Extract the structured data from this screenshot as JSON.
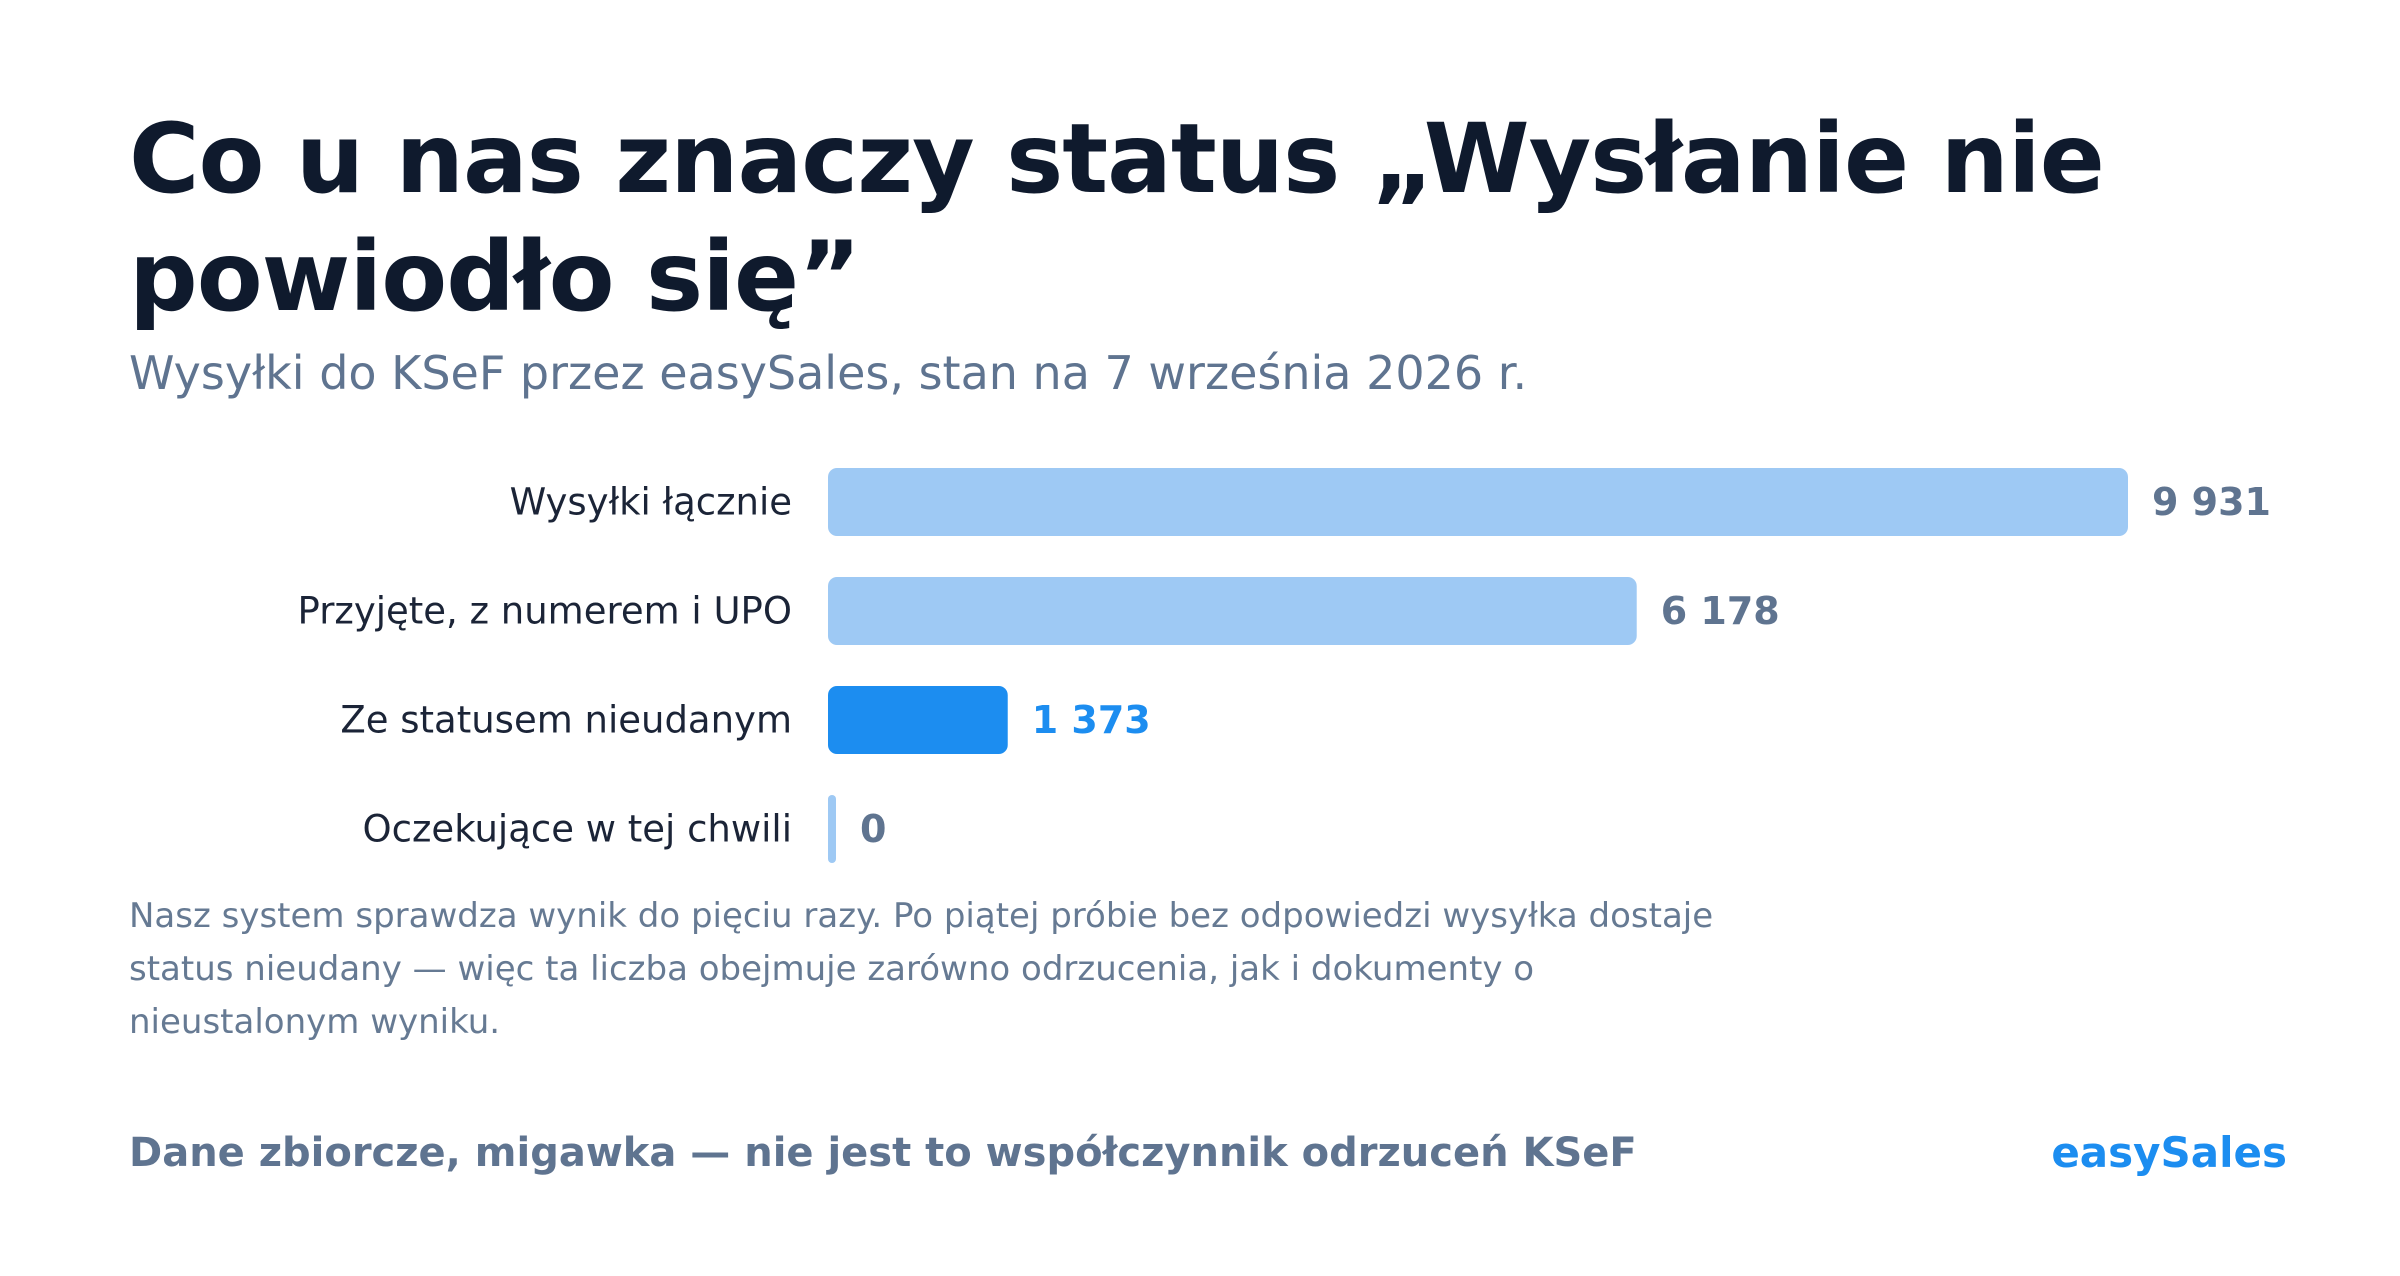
{
  "header": {
    "title": "Co u nas znaczy status „Wysłanie nie powiodło się”",
    "subtitle": "Wysyłki do KSeF przez easySales, stan na 7 września 2026 r."
  },
  "chart_data": {
    "type": "bar",
    "orientation": "horizontal",
    "categories": [
      "Wysyłki łącznie",
      "Przyjęte, z numerem i UPO",
      "Ze statusem nieudanym",
      "Oczekujące w tej chwili"
    ],
    "values": [
      9931,
      6178,
      1373,
      0
    ],
    "value_labels": [
      "9 931",
      "6 178",
      "1 373",
      "0"
    ],
    "highlight_index": 2,
    "colors": {
      "default": "#9ec9f4",
      "highlight": "#1c8df0",
      "label_default": "#5f7490",
      "label_highlight": "#1c8df0"
    },
    "xlim": [
      0,
      9931
    ],
    "grid": false
  },
  "note": "Nasz system sprawdza wynik do pięciu razy. Po piątej próbie bez odpowiedzi wysyłka dostaje status nieudany — więc ta liczba obejmuje zarówno odrzucenia, jak i dokumenty o nieustalonym wyniku.",
  "footer": {
    "disclaimer": "Dane zbiorcze, migawka — nie jest to współczynnik odrzuceń KSeF",
    "brand": "easySales"
  }
}
